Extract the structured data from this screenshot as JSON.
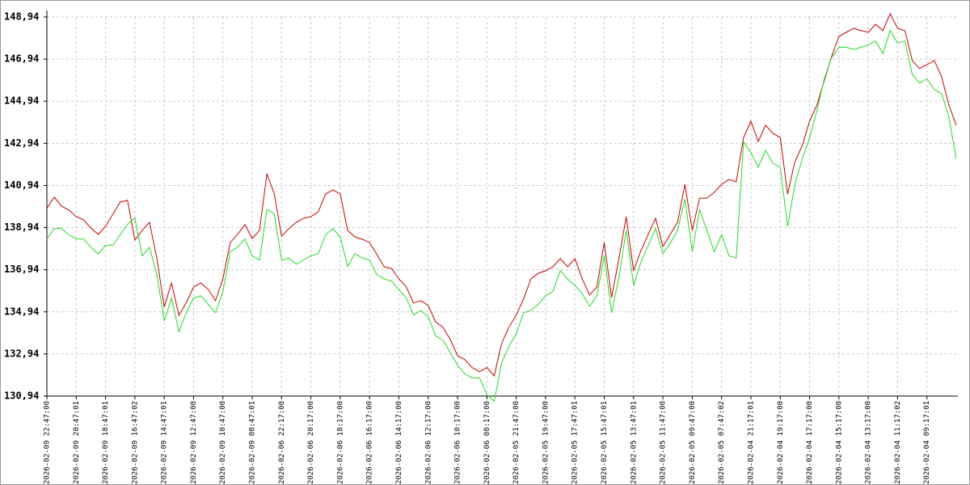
{
  "chart_data": {
    "type": "line",
    "categories": [
      "2026-02-09 22:47:00",
      null,
      null,
      null,
      "2026-02-09 20:47:01",
      null,
      null,
      null,
      "2026-02-09 18:47:01",
      null,
      null,
      null,
      "2026-02-09 16:47:02",
      null,
      null,
      null,
      "2026-02-09 14:47:01",
      null,
      null,
      null,
      "2026-02-09 12:47:00",
      null,
      null,
      null,
      "2026-02-09 10:47:00",
      null,
      null,
      null,
      "2026-02-09 08:47:01",
      null,
      null,
      null,
      "2026-02-06 22:17:00",
      null,
      null,
      null,
      "2026-02-06 20:17:00",
      null,
      null,
      null,
      "2026-02-06 18:17:00",
      null,
      null,
      null,
      "2026-02-06 16:17:00",
      null,
      null,
      null,
      "2026-02-06 14:17:00",
      null,
      null,
      null,
      "2026-02-06 12:17:00",
      null,
      null,
      null,
      "2026-02-06 10:17:00",
      null,
      null,
      null,
      "2026-02-06 08:17:00",
      null,
      null,
      null,
      "2026-02-05 21:47:00",
      null,
      null,
      null,
      "2026-02-05 19:47:00",
      null,
      null,
      null,
      "2026-02-05 17:47:01",
      null,
      null,
      null,
      "2026-02-05 15:47:01",
      null,
      null,
      null,
      "2026-02-05 13:47:01",
      null,
      null,
      null,
      "2026-02-05 11:47:00",
      null,
      null,
      null,
      "2026-02-05 09:47:00",
      null,
      null,
      null,
      "2026-02-05 07:47:02",
      null,
      null,
      null,
      "2026-02-04 21:17:01",
      null,
      null,
      null,
      "2026-02-04 19:17:00",
      null,
      null,
      null,
      "2026-02-04 17:17:00",
      null,
      null,
      null,
      "2026-02-04 15:17:00",
      null,
      null,
      null,
      "2026-02-04 13:17:00",
      null,
      null,
      null,
      "2026-02-04 11:17:02",
      null,
      null,
      null,
      "2026-02-04 09:17:01",
      null,
      null,
      null,
      null
    ],
    "series": [
      {
        "color": "#cc0000",
        "values": [
          139.85,
          140.38,
          139.96,
          139.77,
          139.46,
          139.31,
          138.92,
          138.62,
          139.0,
          139.58,
          140.15,
          140.23,
          138.35,
          138.81,
          139.19,
          137.47,
          135.16,
          136.31,
          134.78,
          135.36,
          136.12,
          136.31,
          136.01,
          135.47,
          136.5,
          138.23,
          138.62,
          139.08,
          138.42,
          138.81,
          141.5,
          140.54,
          138.54,
          138.89,
          139.19,
          139.38,
          139.46,
          139.69,
          140.54,
          140.73,
          140.54,
          138.81,
          138.5,
          138.39,
          138.23,
          137.66,
          137.08,
          137.0,
          136.5,
          136.12,
          135.36,
          135.47,
          135.24,
          134.47,
          134.21,
          133.63,
          132.86,
          132.67,
          132.29,
          132.1,
          132.29,
          131.9,
          133.44,
          134.21,
          134.78,
          135.55,
          136.5,
          136.77,
          136.89,
          137.08,
          137.47,
          137.08,
          137.47,
          136.5,
          135.74,
          136.12,
          138.23,
          135.62,
          137.47,
          139.46,
          136.89,
          137.85,
          138.62,
          139.38,
          138.04,
          138.62,
          139.19,
          140.99,
          138.81,
          140.34,
          140.34,
          140.61,
          140.99,
          141.23,
          141.11,
          143.22,
          143.99,
          143.03,
          143.8,
          143.41,
          143.22,
          140.54,
          142.07,
          142.84,
          143.99,
          144.76,
          145.91,
          147.06,
          148.02,
          148.21,
          148.4,
          148.29,
          148.21,
          148.59,
          148.29,
          149.1,
          148.4,
          148.29,
          146.87,
          146.49,
          146.68,
          146.87,
          146.1,
          144.76,
          143.8
        ]
      },
      {
        "color": "#22dd22",
        "values": [
          138.4,
          138.9,
          138.9,
          138.6,
          138.4,
          138.4,
          138.0,
          137.7,
          138.1,
          138.1,
          138.6,
          139.1,
          139.4,
          137.6,
          138.0,
          136.7,
          134.5,
          135.6,
          134.0,
          134.9,
          135.6,
          135.7,
          135.3,
          134.9,
          135.9,
          137.8,
          138.0,
          138.4,
          137.6,
          137.4,
          139.8,
          139.6,
          137.4,
          137.5,
          137.2,
          137.4,
          137.6,
          137.7,
          138.6,
          138.9,
          138.5,
          137.1,
          137.7,
          137.5,
          137.4,
          136.7,
          136.5,
          136.4,
          136.0,
          135.6,
          134.8,
          135.0,
          134.7,
          133.8,
          133.6,
          133.0,
          132.4,
          132.0,
          131.8,
          131.8,
          131.0,
          130.7,
          132.5,
          133.3,
          133.9,
          134.9,
          135.0,
          135.3,
          135.7,
          135.9,
          136.9,
          136.5,
          136.2,
          135.8,
          135.2,
          135.7,
          137.6,
          134.9,
          136.6,
          138.8,
          136.2,
          137.3,
          138.1,
          138.9,
          137.7,
          138.2,
          138.8,
          140.3,
          137.8,
          139.8,
          138.8,
          137.8,
          138.6,
          137.6,
          137.5,
          143.0,
          142.5,
          141.8,
          142.6,
          142.0,
          141.8,
          139.0,
          141.0,
          142.2,
          143.2,
          144.5,
          146.0,
          147.0,
          147.5,
          147.5,
          147.4,
          147.5,
          147.6,
          147.8,
          147.2,
          148.3,
          147.7,
          147.8,
          146.2,
          145.8,
          146.0,
          145.5,
          145.3,
          144.2,
          142.2
        ]
      }
    ],
    "ylim": [
      130.94,
      148.94
    ],
    "yticks": [
      {
        "value": 130.94,
        "label": "130,94"
      },
      {
        "value": 132.94,
        "label": "132,94"
      },
      {
        "value": 134.94,
        "label": "134,94"
      },
      {
        "value": 136.94,
        "label": "136,94"
      },
      {
        "value": 138.94,
        "label": "138,94"
      },
      {
        "value": 140.94,
        "label": "140,94"
      },
      {
        "value": 142.94,
        "label": "142,94"
      },
      {
        "value": 144.94,
        "label": "144,94"
      },
      {
        "value": 146.94,
        "label": "146,94"
      },
      {
        "value": 148.94,
        "label": "148,94"
      }
    ],
    "grid": true
  }
}
